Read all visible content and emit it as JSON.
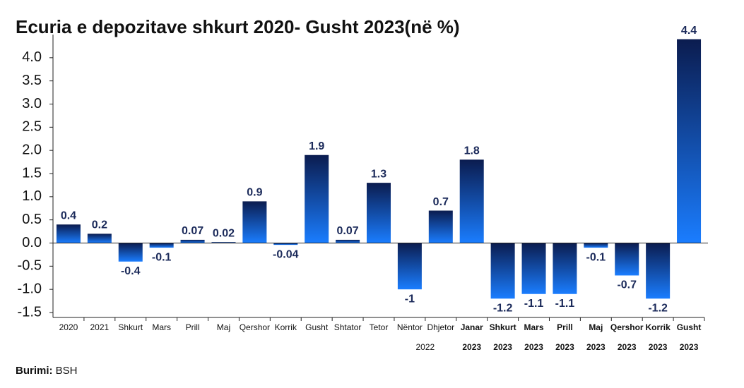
{
  "chart_data": {
    "type": "bar",
    "title": "Ecuria e depozitave shkurt 2020- Gusht 2023(në %)",
    "categories": [
      "2020",
      "2021",
      "Shkurt",
      "Mars",
      "Prill",
      "Maj",
      "Qershor",
      "Korrik",
      "Gusht",
      "Shtator",
      "Tetor",
      "Nëntor",
      "Dhjetor",
      "Janar",
      "Shkurt",
      "Mars",
      "Prill",
      "Maj",
      "Qershor",
      "Korrik",
      "Gusht"
    ],
    "sublabels": [
      null,
      null,
      null,
      null,
      null,
      null,
      null,
      null,
      null,
      null,
      null,
      "2022",
      null,
      "2023",
      "2023",
      "2023",
      "2023",
      "2023",
      "2023",
      "2023",
      "2023"
    ],
    "values": [
      0.4,
      0.2,
      -0.4,
      -0.1,
      0.07,
      0.02,
      0.9,
      -0.04,
      1.9,
      0.07,
      1.3,
      -1,
      0.7,
      1.8,
      -1.2,
      -1.1,
      -1.1,
      -0.1,
      -0.7,
      -1.2,
      4.4
    ],
    "color_top": "#0b1c4f",
    "color_bottom": "#1a7dff",
    "ylim": [
      -1.5,
      4.5
    ],
    "yticks": [
      -1.5,
      {
        "value": -1,
        "label": "-1.0"
      },
      -0.5,
      {
        "value": 0,
        "label": "0.0"
      },
      0.5,
      {
        "value": 1,
        "label": "1.0"
      },
      1.5,
      {
        "value": 2,
        "label": "2.0"
      },
      2.5,
      {
        "value": 3,
        "label": "3.0"
      },
      3.5,
      {
        "value": 4,
        "label": "4.0"
      }
    ],
    "source_label": "Burimi:",
    "source": "BSH"
  }
}
